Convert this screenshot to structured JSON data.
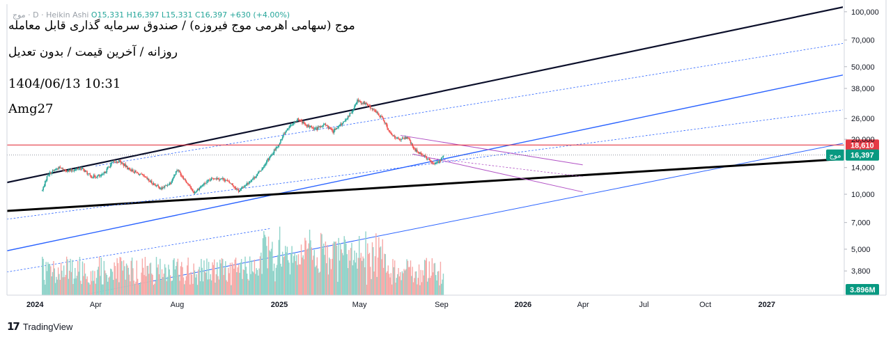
{
  "header": {
    "ohlc_text": "O15,331  H16,397  L15,331  C16,397  +630 (+4.00%)",
    "ohlc_prefix": "موج · D · Heikin Ashi",
    "title": "موج (سهامی اهرمی موج فیروزه) / صندوق سرمایه گذاری قابل معامله",
    "subtitle": "روزانه / آخرین قیمت / بدون تعدیل",
    "timestamp": "1404/06/13 10:31",
    "author": "Amg27"
  },
  "footer": {
    "brand": "TradingView",
    "logo_icon": "tradingview-logo-icon"
  },
  "colors": {
    "up": "#26a69a",
    "down": "#ef5350",
    "volume_up": "#8fd3c9",
    "volume_down": "#f7a9a7",
    "resistance": "#e53945",
    "blue_line": "#2962ff",
    "purple": "#b04fc4",
    "dark": "#0b0f2a"
  },
  "chart_data": {
    "type": "candlestick",
    "style": "Heikin Ashi",
    "interval": "D",
    "symbol_label": "موج",
    "price_scale": "log",
    "ylim": [
      2800,
      110000
    ],
    "y_ticks": [
      100000,
      70000,
      50000,
      38000,
      26000,
      20000,
      14000,
      10000,
      7000,
      5000,
      3800
    ],
    "x_range": [
      "2023-11-20",
      "2027-04-25"
    ],
    "x_ticks": [
      {
        "label": "2024",
        "date": "2024-01-01",
        "bold": true
      },
      {
        "label": "Apr",
        "date": "2024-04-01",
        "bold": false
      },
      {
        "label": "Aug",
        "date": "2024-08-01",
        "bold": false
      },
      {
        "label": "2025",
        "date": "2025-01-01",
        "bold": true
      },
      {
        "label": "May",
        "date": "2025-05-01",
        "bold": false
      },
      {
        "label": "Sep",
        "date": "2025-09-01",
        "bold": false
      },
      {
        "label": "2026",
        "date": "2026-01-01",
        "bold": true
      },
      {
        "label": "Apr",
        "date": "2026-04-01",
        "bold": false
      },
      {
        "label": "Jul",
        "date": "2026-07-01",
        "bold": false
      },
      {
        "label": "Oct",
        "date": "2026-10-01",
        "bold": false
      },
      {
        "label": "2027",
        "date": "2027-01-01",
        "bold": true
      }
    ],
    "price_path": [
      [
        "2024-01-12",
        10500
      ],
      [
        "2024-01-20",
        12800
      ],
      [
        "2024-02-05",
        14000
      ],
      [
        "2024-02-20",
        13400
      ],
      [
        "2024-03-10",
        13900
      ],
      [
        "2024-03-25",
        12500
      ],
      [
        "2024-04-10",
        12600
      ],
      [
        "2024-04-25",
        14800
      ],
      [
        "2024-05-06",
        15200
      ],
      [
        "2024-05-20",
        13800
      ],
      [
        "2024-06-10",
        12600
      ],
      [
        "2024-06-25",
        11500
      ],
      [
        "2024-07-08",
        10700
      ],
      [
        "2024-07-22",
        11600
      ],
      [
        "2024-08-01",
        13700
      ],
      [
        "2024-08-14",
        11800
      ],
      [
        "2024-08-26",
        10200
      ],
      [
        "2024-09-10",
        11400
      ],
      [
        "2024-09-25",
        12300
      ],
      [
        "2024-10-10",
        12100
      ],
      [
        "2024-10-22",
        11300
      ],
      [
        "2024-11-01",
        10400
      ],
      [
        "2024-11-12",
        11300
      ],
      [
        "2024-11-28",
        12700
      ],
      [
        "2024-12-15",
        15500
      ],
      [
        "2024-12-30",
        18500
      ],
      [
        "2025-01-12",
        22800
      ],
      [
        "2025-01-28",
        25800
      ],
      [
        "2025-02-10",
        24000
      ],
      [
        "2025-02-25",
        22800
      ],
      [
        "2025-03-10",
        24200
      ],
      [
        "2025-03-22",
        22000
      ],
      [
        "2025-04-05",
        24500
      ],
      [
        "2025-04-18",
        27800
      ],
      [
        "2025-04-28",
        32500
      ],
      [
        "2025-05-08",
        31500
      ],
      [
        "2025-05-20",
        29500
      ],
      [
        "2025-06-05",
        26000
      ],
      [
        "2025-06-18",
        21000
      ],
      [
        "2025-07-02",
        19800
      ],
      [
        "2025-07-12",
        20500
      ],
      [
        "2025-07-22",
        17600
      ],
      [
        "2025-08-05",
        16400
      ],
      [
        "2025-08-20",
        14600
      ],
      [
        "2025-08-30",
        15300
      ],
      [
        "2025-09-04",
        16397
      ]
    ],
    "last_candle": {
      "open": 15331,
      "high": 16397,
      "low": 15331,
      "close": 16397,
      "change": 630,
      "change_pct": 4.0
    },
    "volume": {
      "ylim_max": 13000000,
      "last_value_label": "3.896M"
    },
    "levels": [
      {
        "name": "resistance",
        "price": 18610,
        "label": "18,610",
        "color": "#e53945"
      },
      {
        "name": "last-price",
        "price": 16397,
        "label": "16,397",
        "tag": "موج",
        "color": "#089981"
      }
    ],
    "trendlines": [
      {
        "name": "upper-channel",
        "points": [
          [
            "2023-11-20",
            11600
          ],
          [
            "2027-04-25",
            106000
          ]
        ],
        "color": "#0b0f2a",
        "width": 2.2
      },
      {
        "name": "mid-channel",
        "points": [
          [
            "2023-11-20",
            4900
          ],
          [
            "2027-04-25",
            45000
          ]
        ],
        "color": "#2962ff",
        "width": 1.4
      },
      {
        "name": "lower-channel",
        "points": [
          [
            "2024-03-01",
            2750
          ],
          [
            "2027-04-25",
            19000
          ]
        ],
        "color": "#2962ff",
        "width": 1
      },
      {
        "name": "long-support",
        "points": [
          [
            "2023-11-20",
            8100
          ],
          [
            "2027-04-25",
            15600
          ]
        ],
        "color": "#000000",
        "width": 3
      },
      {
        "name": "dotted-upper",
        "points": [
          [
            "2024-04-01",
            14300
          ],
          [
            "2027-04-25",
            67000
          ]
        ],
        "color": "#2962ff",
        "width": 0.8,
        "dash": true
      },
      {
        "name": "dotted-middle",
        "points": [
          [
            "2023-11-20",
            7300
          ],
          [
            "2027-04-25",
            29000
          ]
        ],
        "color": "#2962ff",
        "width": 0.8,
        "dash": true
      },
      {
        "name": "dotted-lower",
        "points": [
          [
            "2023-11-20",
            3750
          ],
          [
            "2024-12-20",
            6500
          ]
        ],
        "color": "#2962ff",
        "width": 0.8,
        "dash": true
      },
      {
        "name": "purple-upper",
        "points": [
          [
            "2025-07-02",
            21000
          ],
          [
            "2026-03-31",
            14500
          ]
        ],
        "color": "#b04fc4",
        "width": 1
      },
      {
        "name": "purple-lower",
        "points": [
          [
            "2025-07-20",
            16600
          ],
          [
            "2026-03-31",
            10300
          ]
        ],
        "color": "#b04fc4",
        "width": 1
      },
      {
        "name": "purple-mid-dotted",
        "points": [
          [
            "2025-08-20",
            15700
          ],
          [
            "2026-03-31",
            12500
          ]
        ],
        "color": "#b04fc4",
        "width": 0.8,
        "dash": true
      }
    ]
  }
}
